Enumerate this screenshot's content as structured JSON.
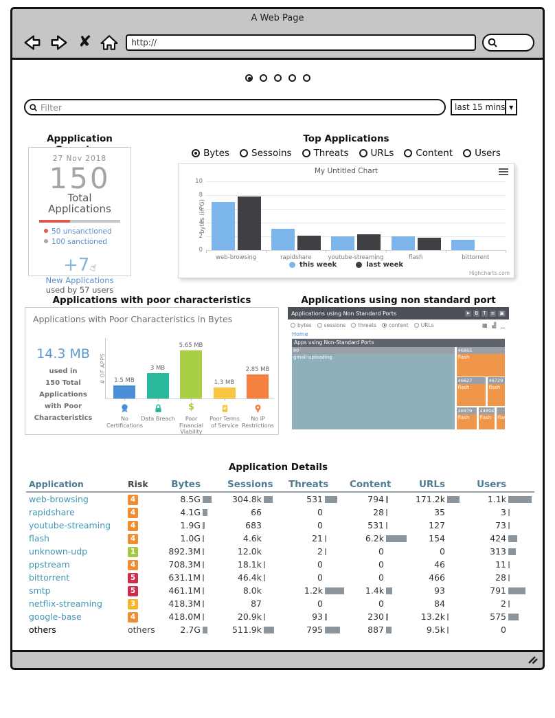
{
  "window": {
    "title": "A Web Page",
    "url_value": "http://"
  },
  "carousel": {
    "count": 5,
    "active_index": 0
  },
  "filter_bar": {
    "placeholder": "Filter",
    "time_range_value": "last 15 mins"
  },
  "overview": {
    "heading": "Appplication Overview",
    "date": "27 Nov 2018",
    "total_number": "150",
    "total_lines": [
      "Total",
      "Applications"
    ],
    "progress": {
      "red_pct": 38,
      "red_color": "#e2574c",
      "gray_color": "#c4c4c4"
    },
    "legend": [
      {
        "label": "50 unsanctioned",
        "bullet_color": "#e2574c"
      },
      {
        "label": "100 sanctioned",
        "bullet_color": "#a8a8a8"
      }
    ],
    "new_apps_number": "+7",
    "new_apps_label": "New Applications",
    "new_apps_sub": "used by 57 users"
  },
  "top_applications": {
    "heading": "Top Applications",
    "metric_options": [
      {
        "label": "Bytes",
        "selected": true
      },
      {
        "label": "Sessoins",
        "selected": false
      },
      {
        "label": "Threats",
        "selected": false
      },
      {
        "label": "URLs",
        "selected": false
      },
      {
        "label": "Content",
        "selected": false
      },
      {
        "label": "Users",
        "selected": false
      }
    ]
  },
  "poor_section": {
    "heading": "Applications with poor characteristics"
  },
  "tree_section": {
    "heading": "Applications using non standard port",
    "panel_title": "Applications using Non Standard Ports",
    "metric_options": [
      {
        "label": "bytes",
        "selected": false
      },
      {
        "label": "sessions",
        "selected": false
      },
      {
        "label": "threats",
        "selected": false
      },
      {
        "label": "content",
        "selected": true
      },
      {
        "label": "URLs",
        "selected": false
      }
    ],
    "home_link": "Home"
  },
  "chart_data": [
    {
      "id": "top-applications-chart",
      "type": "bar",
      "title": "My Untitled Chart",
      "categories": [
        "web-browsing",
        "rapidshare",
        "youtube-streaming",
        "flash",
        "bittorrent"
      ],
      "series": [
        {
          "name": "this week",
          "color": "#7cb5ec",
          "values": [
            7.0,
            3.1,
            2.0,
            2.0,
            1.5
          ]
        },
        {
          "name": "last week",
          "color": "#3f3f44",
          "values": [
            7.8,
            2.1,
            2.3,
            1.8,
            null
          ]
        }
      ],
      "ylabel": "bytes (in G)",
      "ylim": [
        0,
        10
      ],
      "yticks": [
        0,
        2,
        4,
        6,
        8,
        10
      ],
      "grid": true,
      "legend_position": "bottom",
      "credit": "Highcharts.com"
    },
    {
      "id": "poor-characteristics-chart",
      "type": "bar",
      "title": "Applications with Poor Characteristics in Bytes",
      "categories": [
        "No Certifications",
        "Data Breach",
        "Poor Financial Viability",
        "Poor Terms of Service",
        "No IP Restrictions"
      ],
      "values": [
        1.5,
        3,
        5.65,
        1.3,
        2.85
      ],
      "value_labels": [
        "1.5 MB",
        "3 MB",
        "5.65 MB",
        "1.3 MB",
        "2.85 MB"
      ],
      "bar_colors": [
        "#4a90d9",
        "#2bb99e",
        "#a8cf45",
        "#f7c744",
        "#f4813f"
      ],
      "icons": [
        "certificate-icon",
        "lock-icon",
        "dollar-icon",
        "document-icon",
        "pin-icon"
      ],
      "ylabel": "# OF APPS",
      "summary_big": "14.3 MB",
      "summary_lines": [
        "used in",
        "150 Total",
        "Applications",
        "with Poor",
        "Characteristics"
      ]
    },
    {
      "id": "non-standard-ports-treemap",
      "type": "treemap",
      "root_label": "Apps using Non-Standard Ports",
      "cells": [
        {
          "port": "80",
          "app": "gmail-uploading",
          "color": "#8fb0ba"
        },
        {
          "port": "46865",
          "app": "flash",
          "color": "#f0964b"
        },
        {
          "port": "46627",
          "app": "flash",
          "color": "#f0964b"
        },
        {
          "port": "46729",
          "app": "flash",
          "color": "#f0964b"
        },
        {
          "port": "46979",
          "app": "flash",
          "color": "#f0964b"
        },
        {
          "port": "44894",
          "app": "flash",
          "color": "#f0964b"
        },
        {
          "port": "",
          "app": "flash",
          "color": "#f0964b"
        }
      ]
    }
  ],
  "details": {
    "heading": "Application Details",
    "columns": [
      "Application",
      "Risk",
      "Bytes",
      "Sessions",
      "Threats",
      "Content",
      "URLs",
      "Users"
    ],
    "risk_colors": {
      "1": "#a3c644",
      "3": "#f7b32b",
      "4": "#ef8d33",
      "5": "#cf2b4b"
    },
    "rows": [
      {
        "app": "web-browsing",
        "risk": "4",
        "metrics": [
          {
            "v": "8.5G",
            "bar": 13
          },
          {
            "v": "304.8k",
            "bar": 13
          },
          {
            "v": "531",
            "bar": 18
          },
          {
            "v": "794",
            "bar": 3
          },
          {
            "v": "171.2k",
            "bar": 18
          },
          {
            "v": "1.1k",
            "bar": 34
          }
        ]
      },
      {
        "app": "rapidshare",
        "risk": "4",
        "metrics": [
          {
            "v": "4.1G",
            "bar": 7
          },
          {
            "v": "66",
            "bar": 0
          },
          {
            "v": "0",
            "bar": 0
          },
          {
            "v": "28",
            "bar": 2
          },
          {
            "v": "35",
            "bar": 0
          },
          {
            "v": "3",
            "bar": 2
          }
        ]
      },
      {
        "app": "youtube-streaming",
        "risk": "4",
        "metrics": [
          {
            "v": "1.9G",
            "bar": 3
          },
          {
            "v": "683",
            "bar": 0
          },
          {
            "v": "0",
            "bar": 0
          },
          {
            "v": "531",
            "bar": 2
          },
          {
            "v": "127",
            "bar": 0
          },
          {
            "v": "73",
            "bar": 2
          }
        ]
      },
      {
        "app": "flash",
        "risk": "4",
        "metrics": [
          {
            "v": "1.0G",
            "bar": 2
          },
          {
            "v": "4.6k",
            "bar": 0
          },
          {
            "v": "21",
            "bar": 2
          },
          {
            "v": "6.2k",
            "bar": 30
          },
          {
            "v": "154",
            "bar": 0
          },
          {
            "v": "424",
            "bar": 13
          }
        ]
      },
      {
        "app": "unknown-udp",
        "risk": "1",
        "metrics": [
          {
            "v": "892.3M",
            "bar": 2
          },
          {
            "v": "12.0k",
            "bar": 0
          },
          {
            "v": "2",
            "bar": 2
          },
          {
            "v": "0",
            "bar": 0
          },
          {
            "v": "0",
            "bar": 0
          },
          {
            "v": "313",
            "bar": 11
          }
        ]
      },
      {
        "app": "ppstream",
        "risk": "4",
        "metrics": [
          {
            "v": "708.3M",
            "bar": 2
          },
          {
            "v": "18.1k",
            "bar": 2
          },
          {
            "v": "0",
            "bar": 0
          },
          {
            "v": "0",
            "bar": 0
          },
          {
            "v": "46",
            "bar": 0
          },
          {
            "v": "11",
            "bar": 2
          }
        ]
      },
      {
        "app": "bittorrent",
        "risk": "5",
        "metrics": [
          {
            "v": "631.1M",
            "bar": 2
          },
          {
            "v": "46.4k",
            "bar": 2
          },
          {
            "v": "0",
            "bar": 0
          },
          {
            "v": "0",
            "bar": 0
          },
          {
            "v": "466",
            "bar": 0
          },
          {
            "v": "28",
            "bar": 2
          }
        ]
      },
      {
        "app": "smtp",
        "risk": "5",
        "metrics": [
          {
            "v": "461.1M",
            "bar": 2
          },
          {
            "v": "8.0k",
            "bar": 0
          },
          {
            "v": "1.2k",
            "bar": 28
          },
          {
            "v": "1.4k",
            "bar": 9
          },
          {
            "v": "93",
            "bar": 0
          },
          {
            "v": "791",
            "bar": 25
          }
        ]
      },
      {
        "app": "netflix-streaming",
        "risk": "3",
        "metrics": [
          {
            "v": "418.3M",
            "bar": 2
          },
          {
            "v": "87",
            "bar": 0
          },
          {
            "v": "0",
            "bar": 0
          },
          {
            "v": "0",
            "bar": 0
          },
          {
            "v": "84",
            "bar": 0
          },
          {
            "v": "2",
            "bar": 2
          }
        ]
      },
      {
        "app": "google-base",
        "risk": "4",
        "metrics": [
          {
            "v": "418.0M",
            "bar": 2
          },
          {
            "v": "20.9k",
            "bar": 2
          },
          {
            "v": "93",
            "bar": 3
          },
          {
            "v": "230",
            "bar": 3
          },
          {
            "v": "13.2k",
            "bar": 2
          },
          {
            "v": "575",
            "bar": 15
          }
        ]
      },
      {
        "app": "others",
        "risk": "others",
        "metrics": [
          {
            "v": "2.7G",
            "bar": 7
          },
          {
            "v": "511.9k",
            "bar": 15
          },
          {
            "v": "795",
            "bar": 22
          },
          {
            "v": "887",
            "bar": 8
          },
          {
            "v": "9.5k",
            "bar": 2
          },
          {
            "v": "0",
            "bar": 0
          }
        ]
      }
    ]
  }
}
